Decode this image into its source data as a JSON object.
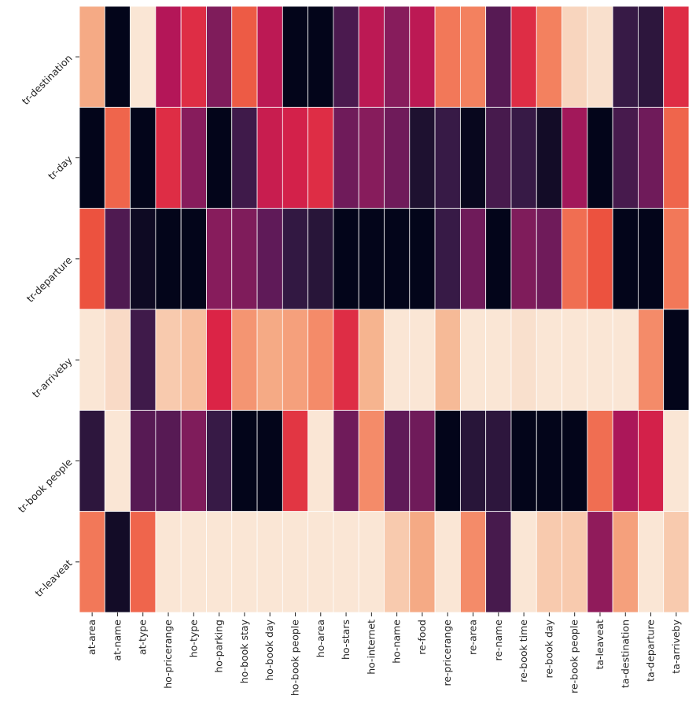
{
  "chart_data": {
    "type": "heatmap",
    "title": "",
    "xlabel": "",
    "ylabel": "",
    "colormap": "rocket",
    "colorbar": false,
    "value_range": [
      0,
      1
    ],
    "cell_border_color": "#ffffff",
    "rows": [
      "tr-destination",
      "tr-day",
      "tr-departure",
      "tr-arriveby",
      "tr-book people",
      "tr-leaveat"
    ],
    "columns": [
      "at-area",
      "at-name",
      "at-type",
      "ho-pricerange",
      "ho-type",
      "ho-parking",
      "ho-book stay",
      "ho-book day",
      "ho-book people",
      "ho-area",
      "ho-stars",
      "ho-internet",
      "ho-name",
      "re-food",
      "re-pricerange",
      "re-area",
      "re-name",
      "re-book time",
      "re-book day",
      "re-book people",
      "ta-leaveat",
      "ta-destination",
      "ta-departure",
      "ta-arriveby"
    ],
    "values": [
      [
        0.88,
        0.0,
        0.99,
        0.5,
        0.62,
        0.38,
        0.72,
        0.52,
        0.0,
        0.0,
        0.25,
        0.52,
        0.4,
        0.52,
        0.78,
        0.8,
        0.28,
        0.62,
        0.8,
        0.96,
        0.98,
        0.2,
        0.16,
        0.62
      ],
      [
        0.0,
        0.74,
        0.0,
        0.62,
        0.4,
        0.0,
        0.22,
        0.55,
        0.58,
        0.62,
        0.34,
        0.4,
        0.34,
        0.1,
        0.2,
        0.02,
        0.24,
        0.2,
        0.06,
        0.46,
        0.0,
        0.24,
        0.34,
        0.74
      ],
      [
        0.7,
        0.26,
        0.04,
        0.0,
        0.0,
        0.4,
        0.38,
        0.3,
        0.18,
        0.14,
        0.0,
        0.0,
        0.0,
        0.0,
        0.2,
        0.34,
        0.0,
        0.38,
        0.34,
        0.76,
        0.7,
        0.0,
        0.0,
        0.78
      ],
      [
        0.99,
        0.97,
        0.22,
        0.94,
        0.92,
        0.6,
        0.84,
        0.88,
        0.86,
        0.82,
        0.62,
        0.9,
        0.99,
        0.99,
        0.91,
        0.99,
        0.99,
        0.98,
        0.99,
        0.99,
        0.99,
        0.99,
        0.82,
        0.0
      ],
      [
        0.16,
        0.99,
        0.28,
        0.28,
        0.38,
        0.2,
        0.0,
        0.0,
        0.64,
        0.99,
        0.34,
        0.82,
        0.3,
        0.34,
        0.0,
        0.14,
        0.16,
        0.0,
        0.0,
        0.0,
        0.76,
        0.48,
        0.58,
        0.99
      ],
      [
        0.78,
        0.06,
        0.74,
        0.99,
        0.99,
        0.99,
        0.99,
        0.99,
        0.99,
        0.99,
        0.99,
        0.99,
        0.94,
        0.88,
        0.99,
        0.82,
        0.24,
        0.99,
        0.94,
        0.94,
        0.42,
        0.86,
        0.99,
        0.94
      ]
    ]
  }
}
